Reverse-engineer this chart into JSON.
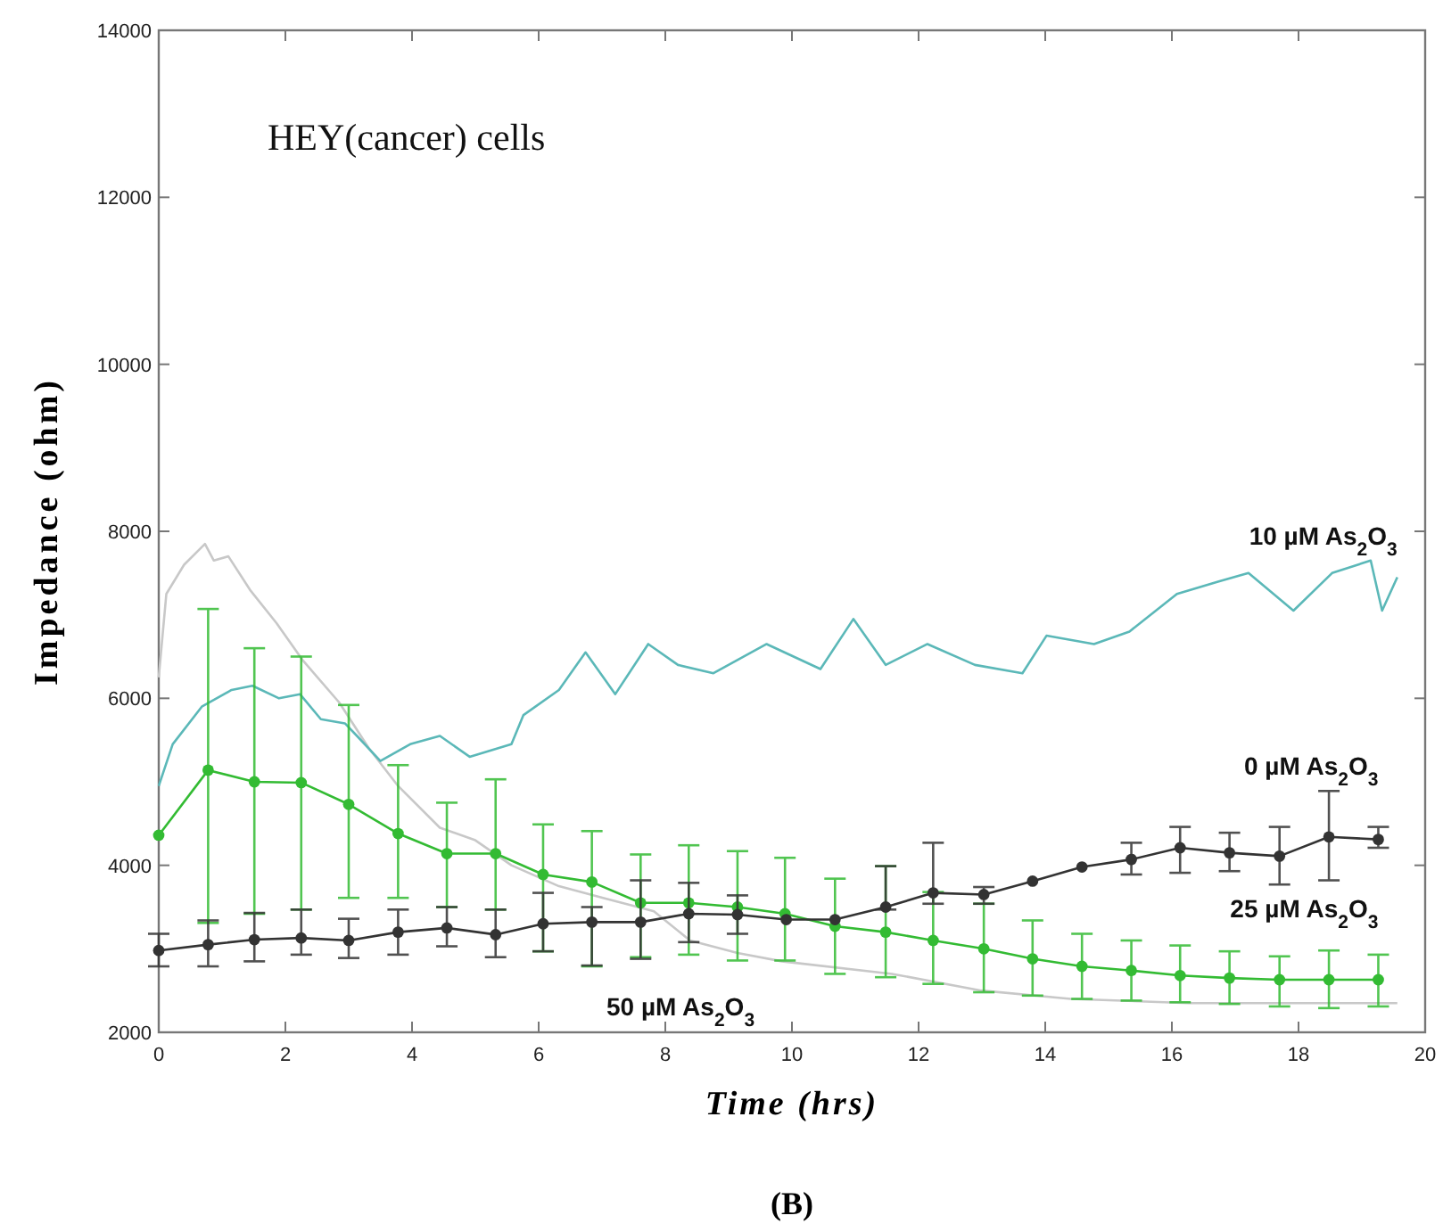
{
  "chart_data": {
    "type": "line",
    "title": "HEY(cancer) cells",
    "xlabel": "Time (hrs)",
    "ylabel": "Impedance (ohm)",
    "xlim": [
      0,
      20
    ],
    "xticks": [
      0,
      2,
      4,
      6,
      8,
      10,
      12,
      14,
      16,
      18,
      20
    ],
    "ylim": [
      2000,
      14000
    ],
    "yticks": [
      2000,
      4000,
      6000,
      8000,
      10000,
      12000,
      14000
    ],
    "grid": false,
    "annotations": [
      "(B)"
    ],
    "series": [
      {
        "name": "50 µM As$_{2}$O$_{3}$",
        "color": "#c8c8c8",
        "marker": "none",
        "x": [
          0,
          0.12,
          0.4,
          0.73,
          0.87,
          1.1,
          1.44,
          1.86,
          2.28,
          2.85,
          3.32,
          3.78,
          4.44,
          5.0,
          5.57,
          6.32,
          7.07,
          7.82,
          8.39,
          9.14,
          9.84,
          11.58,
          12.99,
          14.4,
          16.27,
          18.15,
          19.56
        ],
        "values": [
          6250,
          7250,
          7600,
          7850,
          7650,
          7700,
          7300,
          6900,
          6450,
          5950,
          5400,
          4950,
          4450,
          4300,
          4000,
          3750,
          3600,
          3450,
          3100,
          2950,
          2850,
          2700,
          2500,
          2400,
          2350,
          2350,
          2350
        ]
      },
      {
        "name": "10 µM As$_{2}$O$_{3}$",
        "color": "#5bb8b8",
        "marker": "none",
        "x": [
          0,
          0.22,
          0.68,
          1.15,
          1.48,
          1.9,
          2.23,
          2.56,
          2.94,
          3.13,
          3.5,
          3.97,
          4.44,
          4.91,
          5.57,
          5.76,
          6.32,
          6.74,
          7.21,
          7.73,
          8.2,
          8.76,
          9.6,
          10.45,
          10.97,
          11.48,
          12.14,
          12.89,
          13.64,
          14.02,
          14.77,
          15.33,
          16.08,
          16.74,
          17.21,
          17.92,
          18.53,
          19.14,
          19.32,
          19.56
        ],
        "values": [
          4950,
          5450,
          5900,
          6100,
          6150,
          6000,
          6050,
          5750,
          5700,
          5550,
          5250,
          5450,
          5550,
          5300,
          5450,
          5800,
          6100,
          6550,
          6050,
          6650,
          6400,
          6300,
          6650,
          6350,
          6950,
          6400,
          6650,
          6400,
          6300,
          6750,
          6650,
          6800,
          7250,
          7400,
          7500,
          7050,
          7500,
          7650,
          7050,
          7450
        ]
      },
      {
        "name": "25 µM As$_{2}$O$_{3}$",
        "color": "#33bb33",
        "marker": "circle",
        "x": [
          0,
          0.78,
          1.51,
          2.25,
          3.0,
          3.78,
          4.55,
          5.32,
          6.07,
          6.84,
          7.61,
          8.37,
          9.14,
          9.89,
          10.68,
          11.48,
          12.23,
          13.03,
          13.8,
          14.58,
          15.36,
          16.13,
          16.91,
          17.7,
          18.48,
          19.26
        ],
        "values": [
          4360,
          5140,
          5000,
          4990,
          4730,
          4380,
          4140,
          4140,
          3890,
          3800,
          3550,
          3550,
          3500,
          3420,
          3270,
          3200,
          3100,
          3000,
          2880,
          2790,
          2740,
          2680,
          2650,
          2630,
          2630,
          2630
        ],
        "errors": [
          null,
          [
            3310,
            7070
          ],
          [
            3420,
            6600
          ],
          [
            3470,
            6500
          ],
          [
            3610,
            5920
          ],
          [
            3610,
            5200
          ],
          [
            3500,
            4750
          ],
          [
            3470,
            5030
          ],
          [
            2970,
            4490
          ],
          [
            2790,
            4410
          ],
          [
            2900,
            4130
          ],
          [
            2930,
            4240
          ],
          [
            2860,
            4170
          ],
          [
            2860,
            4090
          ],
          [
            2700,
            3840
          ],
          [
            2660,
            3990
          ],
          [
            2580,
            3680
          ],
          [
            2480,
            3540
          ],
          [
            2440,
            3340
          ],
          [
            2400,
            3180
          ],
          [
            2380,
            3100
          ],
          [
            2360,
            3040
          ],
          [
            2340,
            2970
          ],
          [
            2310,
            2910
          ],
          [
            2290,
            2980
          ],
          [
            2310,
            2930
          ]
        ]
      },
      {
        "name": "0 µM As$_{2}$O$_{3}$",
        "color": "#333333",
        "marker": "circle",
        "x": [
          0,
          0.78,
          1.51,
          2.25,
          3.0,
          3.78,
          4.55,
          5.32,
          6.07,
          6.84,
          7.61,
          8.37,
          9.14,
          9.91,
          10.68,
          11.48,
          12.23,
          13.03,
          13.8,
          14.58,
          15.36,
          16.13,
          16.91,
          17.7,
          18.48,
          19.26
        ],
        "values": [
          2980,
          3050,
          3110,
          3130,
          3100,
          3200,
          3250,
          3170,
          3300,
          3320,
          3320,
          3420,
          3410,
          3350,
          3350,
          3500,
          3670,
          3650,
          3810,
          3980,
          4070,
          4210,
          4150,
          4110,
          4340,
          4310
        ],
        "errors": [
          [
            2790,
            3180
          ],
          [
            2790,
            3340
          ],
          [
            2850,
            3430
          ],
          [
            2930,
            3470
          ],
          [
            2890,
            3360
          ],
          [
            2930,
            3470
          ],
          [
            3030,
            3500
          ],
          [
            2900,
            3470
          ],
          [
            2970,
            3670
          ],
          [
            2800,
            3500
          ],
          [
            2880,
            3820
          ],
          [
            3080,
            3790
          ],
          [
            3180,
            3640
          ],
          null,
          null,
          [
            3470,
            3990
          ],
          [
            3540,
            4270
          ],
          [
            3540,
            3740
          ],
          null,
          null,
          [
            3890,
            4270
          ],
          [
            3910,
            4460
          ],
          [
            3930,
            4390
          ],
          [
            3770,
            4460
          ],
          [
            3820,
            4890
          ],
          [
            4210,
            4460
          ]
        ]
      }
    ]
  }
}
